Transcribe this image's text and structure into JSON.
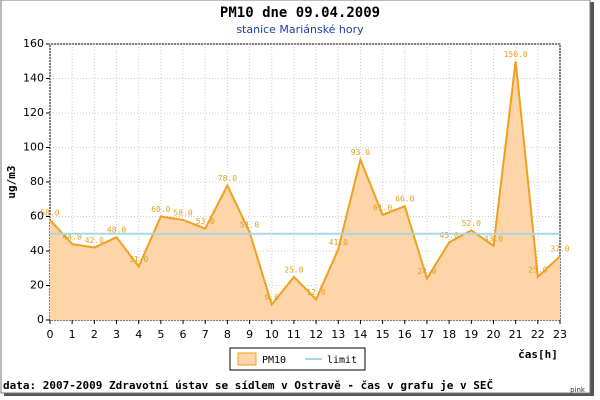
{
  "chart_data": {
    "type": "area",
    "title": "PM10 dne 09.04.2009",
    "subtitle": "stanice Mariánské hory",
    "y_label": "ug/m3",
    "x_label": "čas[h]",
    "x": [
      0,
      1,
      2,
      3,
      4,
      5,
      6,
      7,
      8,
      9,
      10,
      11,
      12,
      13,
      14,
      15,
      16,
      17,
      18,
      19,
      20,
      21,
      22,
      23
    ],
    "series": [
      {
        "name": "PM10",
        "color": "#f0a020",
        "fill": "#fdd5a8",
        "values": [
          58,
          44,
          42,
          48,
          31,
          60,
          58,
          53,
          78,
          51,
          9,
          25,
          12,
          41,
          93,
          61,
          66,
          24,
          45,
          52,
          43,
          150,
          25,
          37
        ],
        "value_labels": [
          "58.0",
          "44.0",
          "42.0",
          "48.0",
          "31.0",
          "60.0",
          "58.0",
          "53.0",
          "78.0",
          "51.0",
          "9.0",
          "25.0",
          "12.0",
          "41.0",
          "93.0",
          "61.0",
          "66.0",
          "24.0",
          "45.0",
          "52.0",
          "43.0",
          "150.0",
          "25.0",
          "37.0"
        ]
      }
    ],
    "limit": {
      "name": "limit",
      "value": 50,
      "color": "#a8d8e8"
    },
    "xlim": [
      0,
      23
    ],
    "xticks": [
      0,
      1,
      2,
      3,
      4,
      5,
      6,
      7,
      8,
      9,
      10,
      11,
      12,
      13,
      14,
      15,
      16,
      17,
      18,
      19,
      20,
      21,
      22,
      23
    ],
    "ylim": [
      0,
      160
    ],
    "yticks": [
      0,
      20,
      40,
      60,
      80,
      100,
      120,
      140,
      160
    ],
    "grid": true,
    "footer": "data: 2007-2009 Zdravotní ústav se sídlem v Ostravě - čas v grafu je v SEČ",
    "credit": "pink"
  }
}
